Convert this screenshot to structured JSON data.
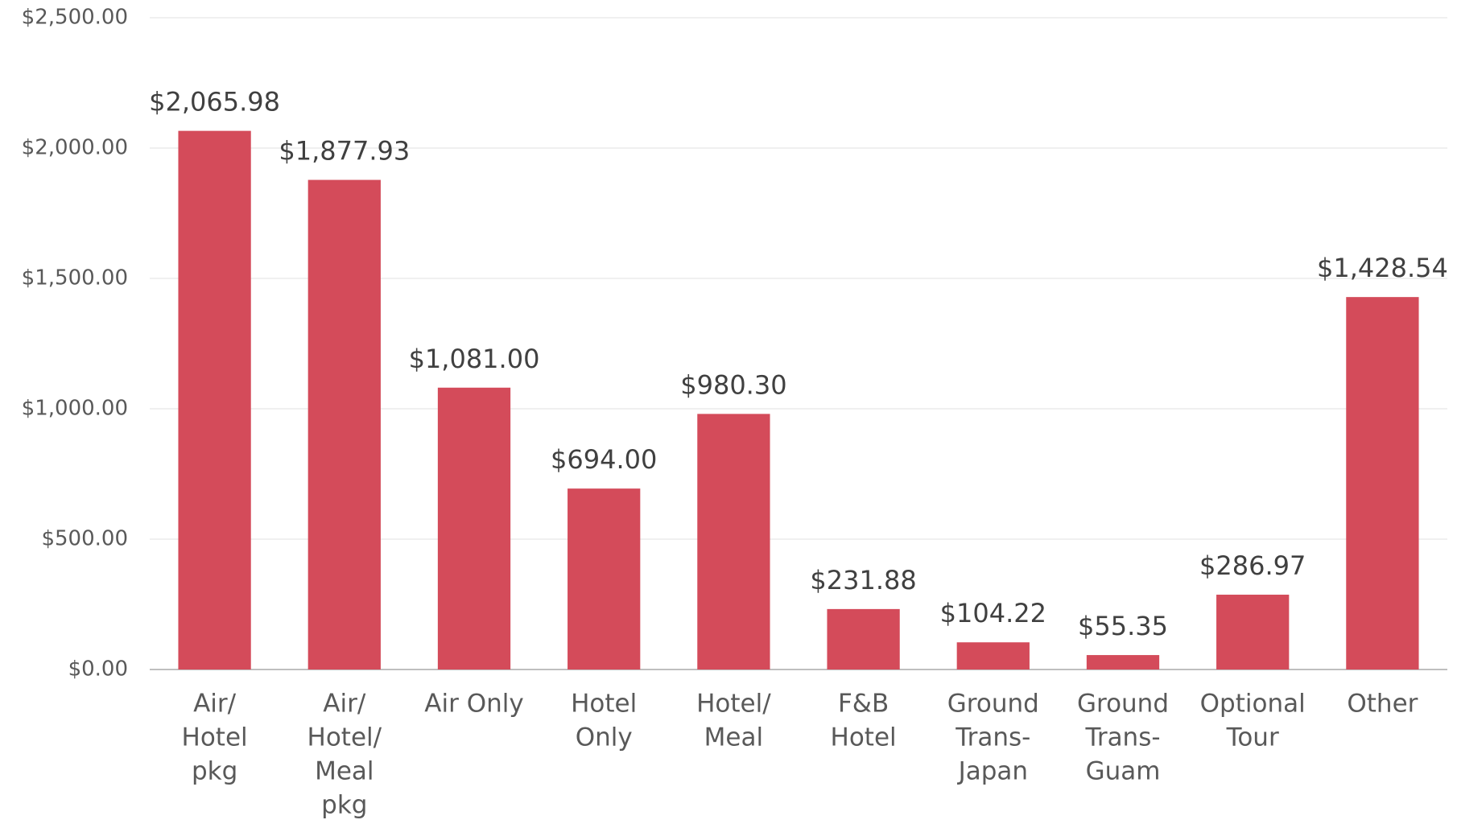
{
  "chart_data": {
    "type": "bar",
    "categories": [
      [
        "Air/",
        "Hotel",
        "pkg"
      ],
      [
        "Air/",
        "Hotel/",
        "Meal",
        "pkg"
      ],
      [
        "Air Only"
      ],
      [
        "Hotel",
        "Only"
      ],
      [
        "Hotel/",
        "Meal"
      ],
      [
        "F&B",
        "Hotel"
      ],
      [
        "Ground",
        "Trans-",
        "Japan"
      ],
      [
        "Ground",
        "Trans-",
        "Guam"
      ],
      [
        "Optional",
        "Tour"
      ],
      [
        "Other"
      ]
    ],
    "values": [
      2065.98,
      1877.93,
      1081.0,
      694.0,
      980.3,
      231.88,
      104.22,
      55.35,
      286.97,
      1428.54
    ],
    "value_labels": [
      "$2,065.98",
      "$1,877.93",
      "$1,081.00",
      "$694.00",
      "$980.30",
      "$231.88",
      "$104.22",
      "$55.35",
      "$286.97",
      "$1,428.54"
    ],
    "color": "#d44b5a",
    "ylim": [
      0,
      2500
    ],
    "yticks": [
      {
        "value": 0,
        "label": "$0.00"
      },
      {
        "value": 500,
        "label": "$500.00"
      },
      {
        "value": 1000,
        "label": "$1,000.00"
      },
      {
        "value": 1500,
        "label": "$1,500.00"
      },
      {
        "value": 2000,
        "label": "$2,000.00"
      },
      {
        "value": 2500,
        "label": "$2,500.00"
      }
    ],
    "grid": true
  }
}
